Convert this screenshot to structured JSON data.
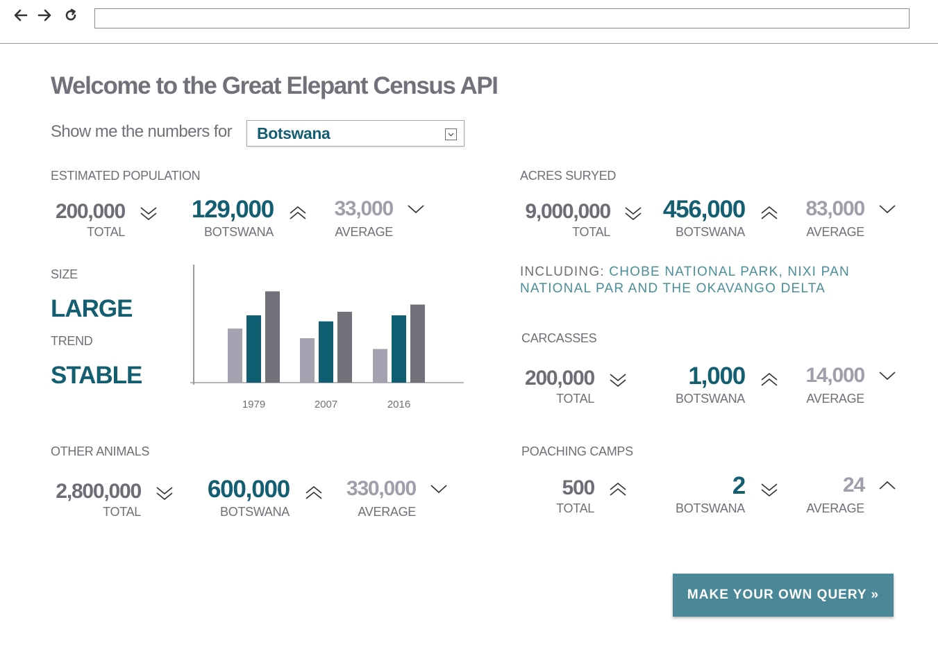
{
  "browser": {
    "back_icon": "arrow-left-icon",
    "forward_icon": "arrow-right-icon",
    "reload_icon": "reload-icon",
    "url": ""
  },
  "page": {
    "title": "Welcome to the Great Elepant Census API",
    "selector_label": "Show me the numbers for",
    "selected_country": "Botswana"
  },
  "estimated_population": {
    "label": "ESTIMATED POPULATION",
    "total": {
      "value": "200,000",
      "caption": "TOTAL",
      "trend": "down"
    },
    "country": {
      "value": "129,000",
      "caption": "BOTSWANA",
      "trend": "up"
    },
    "average": {
      "value": "33,000",
      "caption": "AVERAGE",
      "trend": "down"
    }
  },
  "acres_surveyed": {
    "label": "ACRES SURYED",
    "total": {
      "value": "9,000,000",
      "caption": "TOTAL",
      "trend": "down"
    },
    "country": {
      "value": "456,000",
      "caption": "BOTSWANA",
      "trend": "up"
    },
    "average": {
      "value": "83,000",
      "caption": "AVERAGE",
      "trend": "down"
    }
  },
  "size": {
    "label": "SIZE",
    "value": "LARGE"
  },
  "trend": {
    "label": "TREND",
    "value": "STABLE"
  },
  "including": {
    "label": "INCLUDING: ",
    "value": "CHOBE NATIONAL PARK, NIXI PAN NATIONAL PAR AND THE OKAVANGO DELTA"
  },
  "carcasses": {
    "label": "CARCASSES",
    "total": {
      "value": "200,000",
      "caption": "TOTAL",
      "trend": "down"
    },
    "country": {
      "value": "1,000",
      "caption": "BOTSWANA",
      "trend": "up"
    },
    "average": {
      "value": "14,000",
      "caption": "AVERAGE",
      "trend": "down"
    }
  },
  "other_animals": {
    "label": "OTHER ANIMALS",
    "total": {
      "value": "2,800,000",
      "caption": "TOTAL",
      "trend": "down"
    },
    "country": {
      "value": "600,000",
      "caption": "BOTSWANA",
      "trend": "up"
    },
    "average": {
      "value": "330,000",
      "caption": "AVERAGE",
      "trend": "down"
    }
  },
  "poaching_camps": {
    "label": "POACHING CAMPS",
    "total": {
      "value": "500",
      "caption": "TOTAL",
      "trend": "up"
    },
    "country": {
      "value": "2",
      "caption": "BOTSWANA",
      "trend": "down"
    },
    "average": {
      "value": "24",
      "caption": "AVERAGE",
      "trend": "up"
    }
  },
  "cta": {
    "label": "MAKE YOUR OWN QUERY »"
  },
  "colors": {
    "series_light": "#a4a2b0",
    "series_teal": "#0f5e72",
    "series_dark": "#727079",
    "accent": "#145e72",
    "button": "#4a8898"
  },
  "chart_data": {
    "type": "bar",
    "categories": [
      "1979",
      "2007",
      "2016"
    ],
    "series": [
      {
        "values": [
          0.45,
          0.37,
          0.28
        ]
      },
      {
        "values": [
          0.56,
          0.51,
          0.56
        ]
      },
      {
        "values": [
          0.76,
          0.59,
          0.65
        ]
      }
    ],
    "ylim": [
      0,
      1
    ],
    "title": "",
    "xlabel": "",
    "ylabel": "",
    "grid": false,
    "legend": "none"
  }
}
